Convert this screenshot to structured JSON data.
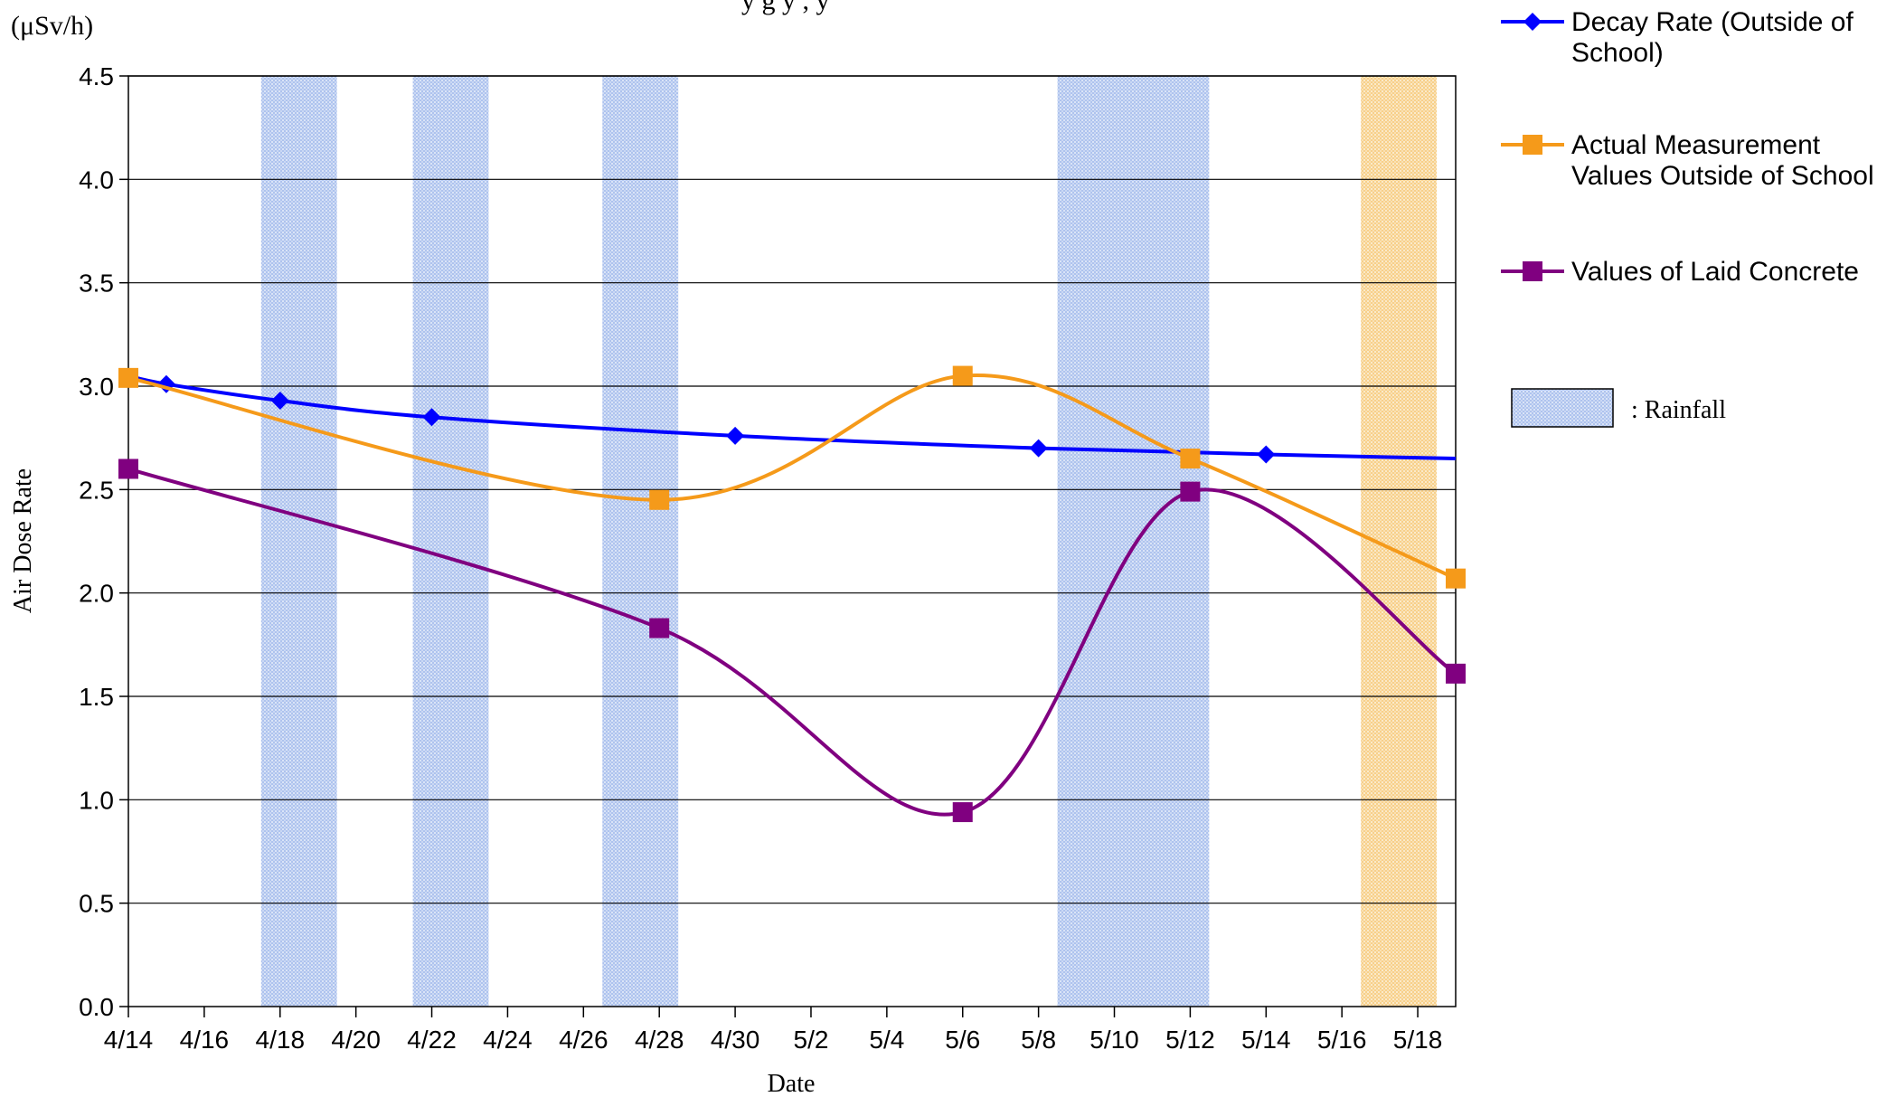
{
  "chart_data": {
    "type": "line",
    "title": "",
    "unit_label": "(μSv/h)",
    "xlabel": "Date",
    "ylabel": "Air Dose Rate",
    "x_start": "4/14",
    "x_end": "5/19",
    "ylim": [
      0,
      4.5
    ],
    "y_ticks": [
      "0.0",
      "0.5",
      "1.0",
      "1.5",
      "2.0",
      "2.5",
      "3.0",
      "3.5",
      "4.0",
      "4.5"
    ],
    "x_ticks": [
      "4/14",
      "4/16",
      "4/18",
      "4/20",
      "4/22",
      "4/24",
      "4/26",
      "4/28",
      "4/30",
      "5/2",
      "5/4",
      "5/6",
      "5/8",
      "5/10",
      "5/12",
      "5/14",
      "5/16",
      "5/18"
    ],
    "grid": "horizontal",
    "legend_position": "right",
    "series": [
      {
        "name": "Decay Rate (Outside of School)",
        "color": "#0000ff",
        "marker": "diamond",
        "points": [
          [
            "4/15",
            3.01
          ],
          [
            "4/18",
            2.93
          ],
          [
            "4/22",
            2.85
          ],
          [
            "4/30",
            2.76
          ],
          [
            "5/8",
            2.7
          ],
          [
            "5/14",
            2.67
          ]
        ],
        "line_extent": [
          [
            "4/14",
            3.05
          ],
          [
            "5/19",
            2.65
          ]
        ]
      },
      {
        "name": "Actual Measurement Values Outside of School",
        "color": "#f59a1a",
        "marker": "square",
        "points": [
          [
            "4/14",
            3.04
          ],
          [
            "4/28",
            2.45
          ],
          [
            "5/6",
            3.05
          ],
          [
            "5/12",
            2.65
          ],
          [
            "5/19",
            2.07
          ]
        ]
      },
      {
        "name": "Values of Laid Concrete",
        "color": "#800080",
        "marker": "square",
        "points": [
          [
            "4/14",
            2.6
          ],
          [
            "4/28",
            1.83
          ],
          [
            "5/6",
            0.94
          ],
          [
            "5/12",
            2.49
          ],
          [
            "5/19",
            1.61
          ]
        ]
      }
    ],
    "rainfall_bands": [
      {
        "from": "4/18",
        "to": "4/19",
        "color": "#aec3ee"
      },
      {
        "from": "4/22",
        "to": "4/23",
        "color": "#aec3ee"
      },
      {
        "from": "4/27",
        "to": "4/28",
        "color": "#aec3ee"
      },
      {
        "from": "5/9",
        "to": "5/12",
        "color": "#aec3ee"
      },
      {
        "from": "5/17",
        "to": "5/18",
        "color": "#f7d08a"
      }
    ],
    "rainfall_legend_label": ": Rainfall",
    "legend_lines": {
      "decay": [
        "Decay Rate (Outside of",
        "School)"
      ],
      "actual": [
        "Actual Measurement",
        "Values Outside of School"
      ],
      "concrete": [
        "Values of Laid Concrete"
      ]
    },
    "title_fragment": "y        g                         y         ,                   y"
  }
}
